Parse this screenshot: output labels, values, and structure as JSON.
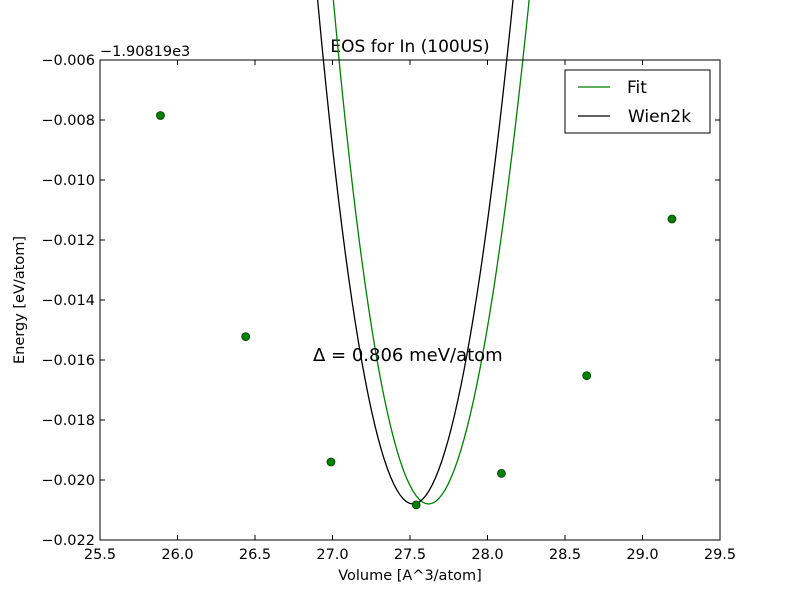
{
  "chart_data": {
    "type": "line",
    "title": "EOS for In (100US)",
    "xlabel": "Volume [A^3/atom]",
    "ylabel": "Energy [eV/atom]",
    "y_offset_label": "−1.90819e3",
    "xlim": [
      25.5,
      29.5
    ],
    "ylim": [
      -0.022,
      -0.006
    ],
    "x_ticks": [
      25.5,
      26.0,
      26.5,
      27.0,
      27.5,
      28.0,
      28.5,
      29.0,
      29.5
    ],
    "x_tick_labels": [
      "25.5",
      "26.0",
      "26.5",
      "27.0",
      "27.5",
      "28.0",
      "28.5",
      "29.0",
      "29.5"
    ],
    "y_ticks": [
      -0.022,
      -0.02,
      -0.018,
      -0.016,
      -0.014,
      -0.012,
      -0.01,
      -0.008,
      -0.006
    ],
    "y_tick_labels": [
      "−0.022",
      "−0.020",
      "−0.018",
      "−0.016",
      "−0.014",
      "−0.012",
      "−0.010",
      "−0.008",
      "−0.006"
    ],
    "legend_position": "top-right",
    "annotation": "Δ = 0.806 meV/atom",
    "points": {
      "color": "#007f00",
      "x": [
        25.89,
        26.44,
        26.99,
        27.54,
        28.09,
        28.64,
        29.19
      ],
      "y": [
        -0.00785,
        -0.01522,
        -0.0194,
        -0.02083,
        -0.01978,
        -0.01652,
        -0.0113
      ]
    },
    "series": [
      {
        "name": "Fit",
        "color": "#007f00",
        "model": "birch-murnaghan",
        "x_range": [
          25.89,
          29.19
        ],
        "E0": -0.0208,
        "V0": 27.62,
        "B": 2.33,
        "Bp": 6.11
      },
      {
        "name": "Wien2k",
        "color": "#000000",
        "model": "birch-murnaghan",
        "x_range": [
          25.89,
          29.19
        ],
        "E0": -0.0208,
        "V0": 27.52,
        "B": 2.33,
        "Bp": 4.97
      }
    ]
  }
}
